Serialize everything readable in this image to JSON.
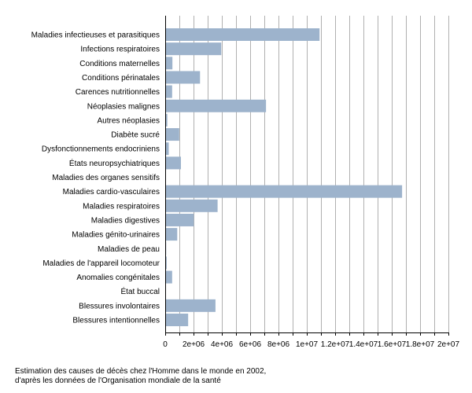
{
  "caption": {
    "line1": "Estimation des causes de décès chez l'Homme dans le monde en 2002,",
    "line2": "d'après les données de l'Organisation mondiale de la santé"
  },
  "colors": {
    "bar": "#9db3cc",
    "grid": "#b0b0b0",
    "axis": "#000000"
  },
  "chart_data": {
    "type": "bar",
    "orientation": "horizontal",
    "title": "",
    "xlabel": "",
    "ylabel": "",
    "xlim": [
      0,
      20000000
    ],
    "grid": true,
    "x_ticks": [
      0,
      2000000,
      4000000,
      6000000,
      8000000,
      10000000,
      12000000,
      14000000,
      16000000,
      18000000,
      20000000
    ],
    "x_tick_labels": [
      "0",
      "2e+06",
      "4e+06",
      "6e+06",
      "8e+06",
      "1e+07",
      "1.2e+07",
      "1.4e+07",
      "1.6e+07",
      "1.8e+07",
      "2e+07"
    ],
    "categories": [
      "Maladies infectieuses et parasitiques",
      "Infections respiratoires",
      "Conditions maternelles",
      "Conditions périnatales",
      "Carences nutritionnelles",
      "Néoplasies malignes",
      "Autres néoplasies",
      "Diabète sucré",
      "Dysfonctionnements endocriniens",
      "États neuropsychiatriques",
      "Maladies des organes sensitifs",
      "Maladies cardio-vasculaires",
      "Maladies respiratoires",
      "Maladies digestives",
      "Maladies génito-urinaires",
      "Maladies de peau",
      "Maladies de l'appareil locomoteur",
      "Anomalies congénitales",
      "État buccal",
      "Blessures involontaires",
      "Blessures intentionnelles"
    ],
    "values": [
      10900000,
      3960000,
      510000,
      2460000,
      490000,
      7120000,
      150000,
      990000,
      250000,
      1110000,
      3000,
      16730000,
      3700000,
      2020000,
      850000,
      68000,
      106000,
      490000,
      2000,
      3550000,
      1620000
    ]
  }
}
